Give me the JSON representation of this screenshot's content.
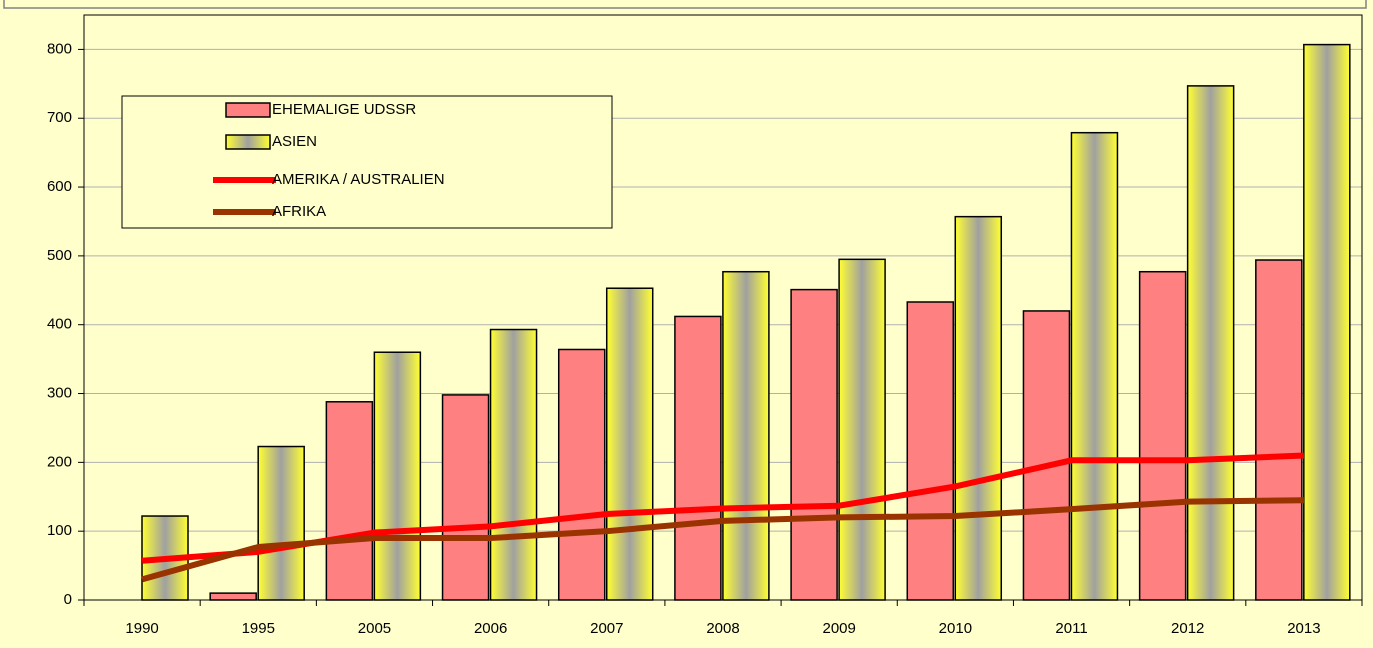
{
  "chart_data": {
    "type": "bar",
    "categories": [
      "1990",
      "1995",
      "2005",
      "2006",
      "2007",
      "2008",
      "2009",
      "2010",
      "2011",
      "2012",
      "2013"
    ],
    "series": [
      {
        "name": "EHEMALIGE UDSSR",
        "type": "bar",
        "color": "#ff8080",
        "values": [
          null,
          10,
          288,
          298,
          364,
          412,
          451,
          433,
          420,
          477,
          494
        ]
      },
      {
        "name": "ASIEN",
        "type": "bar",
        "color": "#ffff66",
        "values": [
          122,
          223,
          360,
          393,
          453,
          477,
          495,
          557,
          679,
          747,
          807
        ]
      },
      {
        "name": "AMERIKA / AUSTRALIEN",
        "type": "line",
        "color": "#ff0000",
        "values": [
          57,
          70,
          98,
          107,
          125,
          133,
          137,
          165,
          203,
          203,
          210
        ]
      },
      {
        "name": "AFRIKA",
        "type": "line",
        "color": "#993300",
        "values": [
          30,
          77,
          90,
          90,
          100,
          115,
          120,
          122,
          132,
          143,
          145
        ]
      }
    ],
    "ylim": [
      0,
      850
    ],
    "yticks": [
      0,
      100,
      200,
      300,
      400,
      500,
      600,
      700,
      800
    ],
    "grid": true,
    "legend": "upper left"
  }
}
